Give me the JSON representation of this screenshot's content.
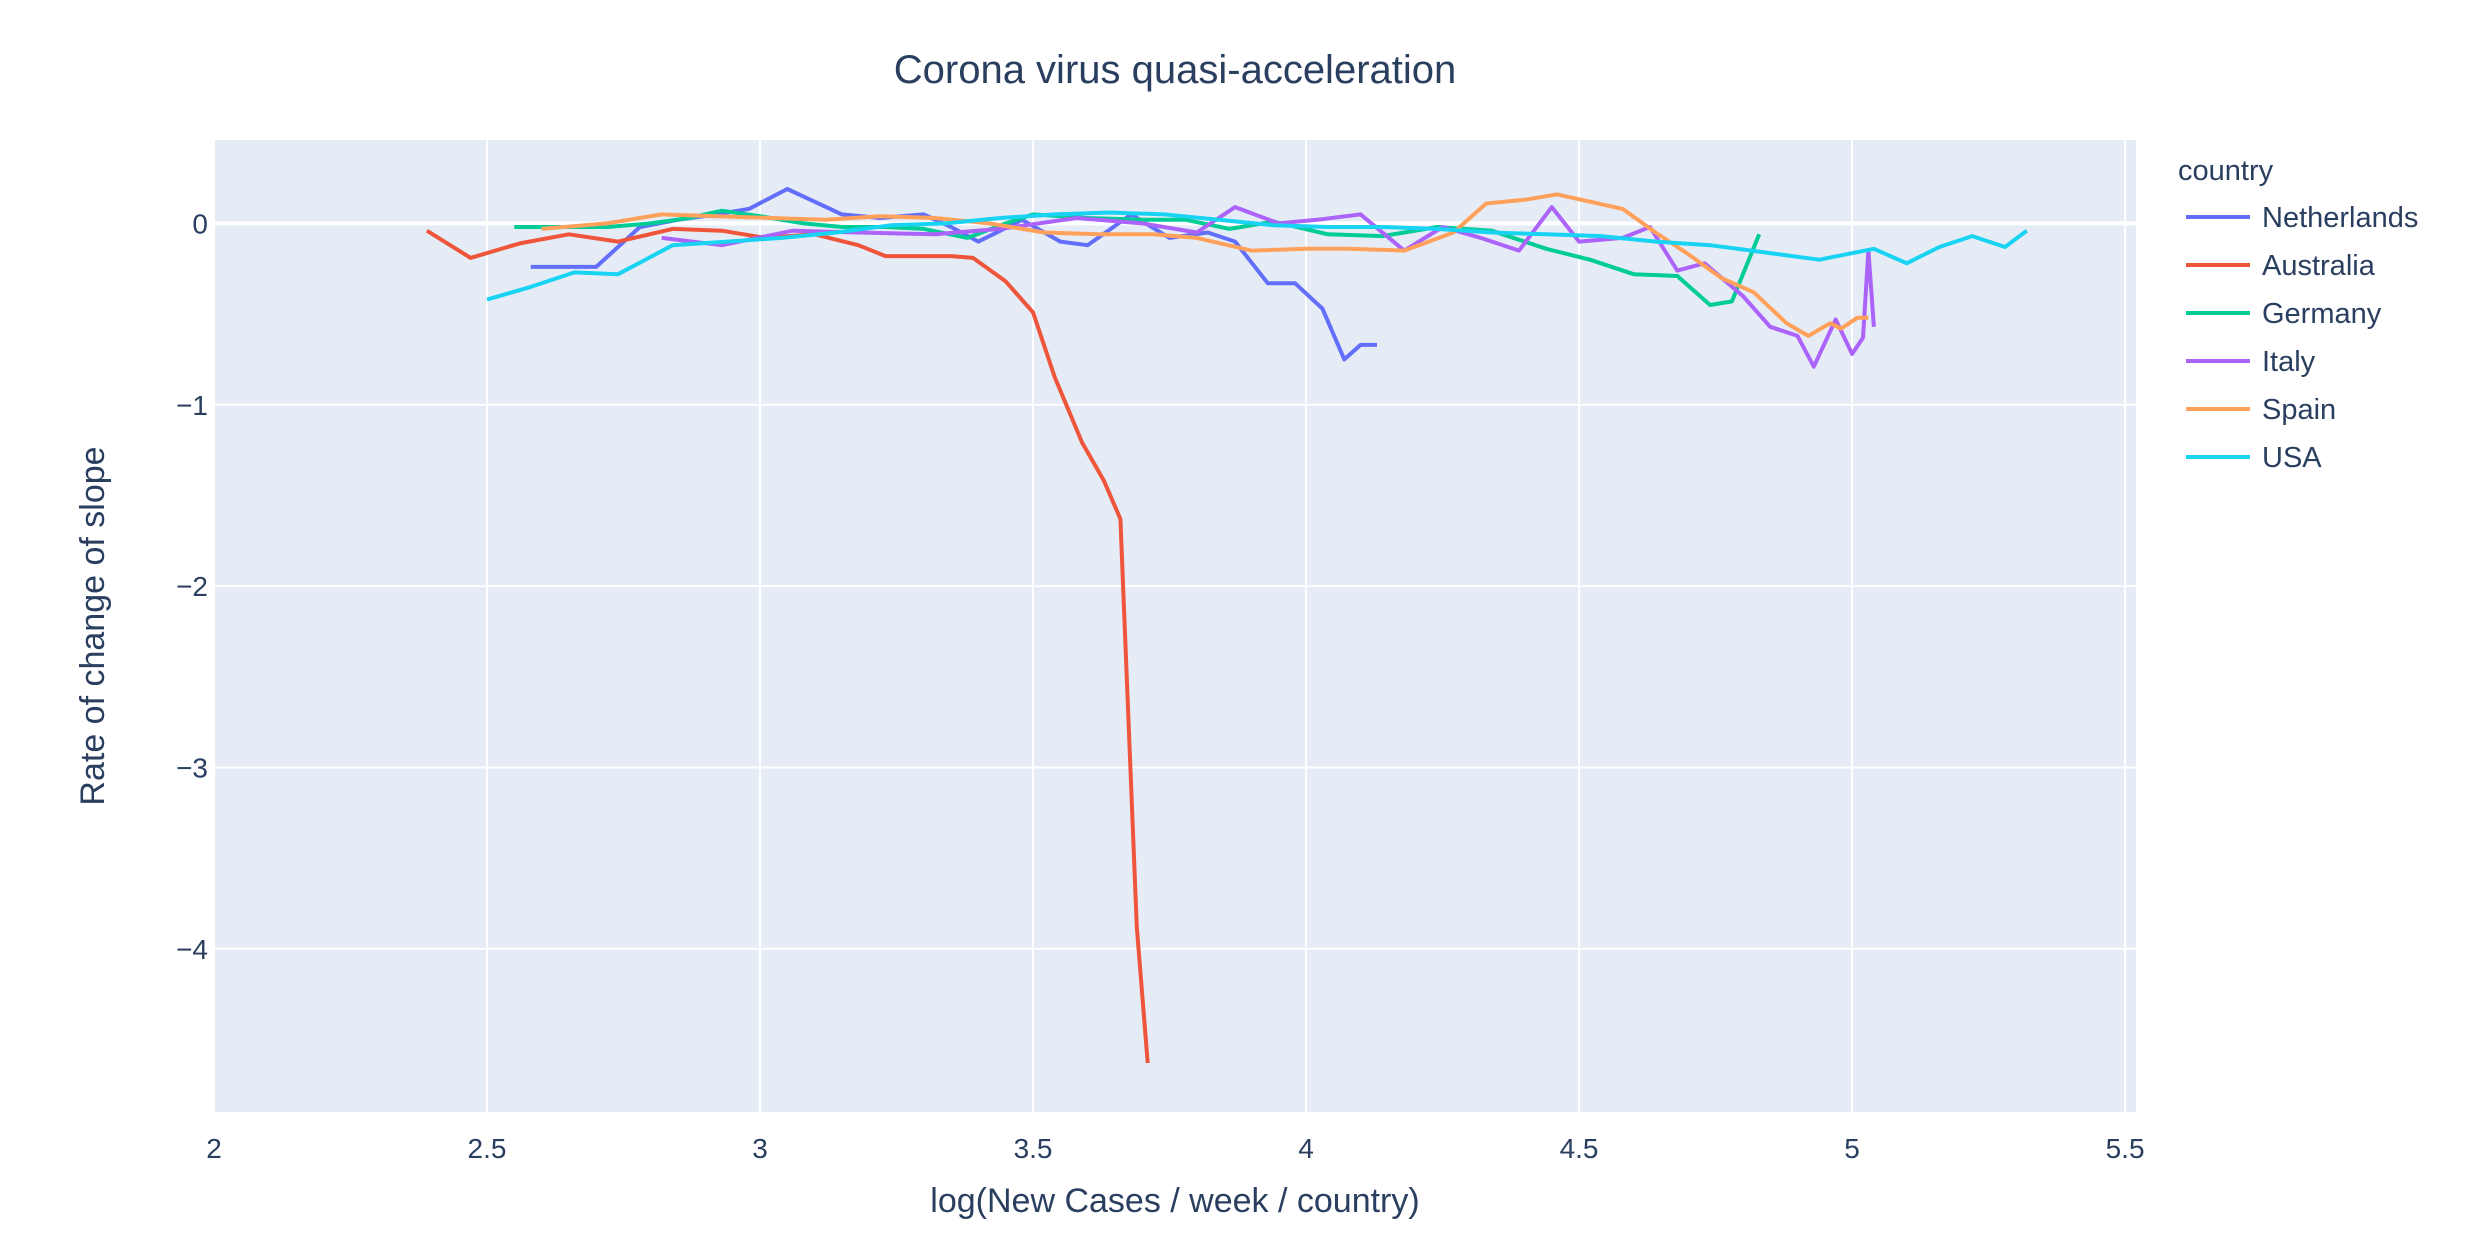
{
  "chart_data": {
    "type": "line",
    "title": "Corona virus quasi-acceleration",
    "xlabel": "log(New Cases / week / country)",
    "ylabel": "Rate of change of slope",
    "xlim": [
      2,
      5.52
    ],
    "ylim": [
      -4.9,
      0.46
    ],
    "xticks": [
      2,
      2.5,
      3,
      3.5,
      4,
      4.5,
      5,
      5.5
    ],
    "xtick_labels": [
      "2",
      "2.5",
      "3",
      "3.5",
      "4",
      "4.5",
      "5",
      "5.5"
    ],
    "yticks": [
      0,
      -1,
      -2,
      -3,
      -4
    ],
    "ytick_labels": [
      "0",
      "−1",
      "−2",
      "−3",
      "−4"
    ],
    "grid": true,
    "legend_title": "country",
    "legend_position": "right",
    "series": [
      {
        "name": "Netherlands",
        "color": "#636efa",
        "x": [
          2.58,
          2.65,
          2.7,
          2.78,
          2.85,
          2.92,
          2.98,
          3.05,
          3.1,
          3.15,
          3.22,
          3.3,
          3.35,
          3.4,
          3.48,
          3.55,
          3.6,
          3.68,
          3.75,
          3.82,
          3.87,
          3.93,
          3.98,
          4.03,
          4.07,
          4.1,
          4.13
        ],
        "y": [
          -0.24,
          -0.24,
          -0.24,
          -0.02,
          0.02,
          0.05,
          0.08,
          0.19,
          0.12,
          0.05,
          0.03,
          0.05,
          -0.02,
          -0.1,
          0.02,
          -0.1,
          -0.12,
          0.05,
          -0.08,
          -0.05,
          -0.1,
          -0.33,
          -0.33,
          -0.47,
          -0.75,
          -0.67,
          -0.67
        ]
      },
      {
        "name": "Australia",
        "color": "#ef553b",
        "x": [
          2.39,
          2.47,
          2.56,
          2.65,
          2.74,
          2.84,
          2.93,
          3.01,
          3.1,
          3.18,
          3.23,
          3.3,
          3.35,
          3.39,
          3.45,
          3.5,
          3.54,
          3.59,
          3.63,
          3.66,
          3.69,
          3.71
        ],
        "y": [
          -0.04,
          -0.19,
          -0.11,
          -0.06,
          -0.1,
          -0.03,
          -0.04,
          -0.08,
          -0.06,
          -0.12,
          -0.18,
          -0.18,
          -0.18,
          -0.19,
          -0.32,
          -0.49,
          -0.85,
          -1.21,
          -1.42,
          -1.63,
          -3.88,
          -4.63
        ]
      },
      {
        "name": "Germany",
        "color": "#00cc96",
        "x": [
          2.55,
          2.63,
          2.72,
          2.8,
          2.87,
          2.93,
          3.0,
          3.08,
          3.15,
          3.23,
          3.3,
          3.38,
          3.45,
          3.5,
          3.6,
          3.7,
          3.78,
          3.86,
          3.94,
          4.04,
          4.14,
          4.24,
          4.34,
          4.44,
          4.52,
          4.6,
          4.68,
          4.74,
          4.78,
          4.83
        ],
        "y": [
          -0.02,
          -0.02,
          -0.02,
          0.0,
          0.03,
          0.07,
          0.04,
          0.0,
          -0.02,
          -0.02,
          -0.03,
          -0.08,
          0.0,
          0.05,
          0.03,
          0.02,
          0.02,
          -0.03,
          0.01,
          -0.06,
          -0.07,
          -0.02,
          -0.04,
          -0.14,
          -0.2,
          -0.28,
          -0.29,
          -0.45,
          -0.43,
          -0.06
        ]
      },
      {
        "name": "Italy",
        "color": "#ab63fa",
        "x": [
          2.82,
          2.93,
          3.06,
          3.18,
          3.32,
          3.44,
          3.58,
          3.7,
          3.8,
          3.87,
          3.95,
          4.02,
          4.1,
          4.18,
          4.25,
          4.32,
          4.39,
          4.45,
          4.5,
          4.58,
          4.63,
          4.68,
          4.73,
          4.8,
          4.85,
          4.9,
          4.93,
          4.97,
          5.0,
          5.02,
          5.03,
          5.04
        ],
        "y": [
          -0.08,
          -0.12,
          -0.04,
          -0.05,
          -0.06,
          -0.03,
          0.03,
          0.0,
          -0.05,
          0.09,
          0.0,
          0.02,
          0.05,
          -0.15,
          -0.02,
          -0.08,
          -0.15,
          0.09,
          -0.1,
          -0.08,
          -0.02,
          -0.26,
          -0.22,
          -0.4,
          -0.57,
          -0.62,
          -0.79,
          -0.53,
          -0.72,
          -0.63,
          -0.15,
          -0.57
        ]
      },
      {
        "name": "Spain",
        "color": "#ffa15a",
        "x": [
          2.6,
          2.72,
          2.82,
          2.92,
          3.02,
          3.12,
          3.22,
          3.32,
          3.42,
          3.52,
          3.62,
          3.72,
          3.8,
          3.9,
          4.0,
          4.08,
          4.18,
          4.27,
          4.33,
          4.4,
          4.46,
          4.52,
          4.58,
          4.64,
          4.7,
          4.76,
          4.82,
          4.88,
          4.92,
          4.96,
          4.98,
          5.01,
          5.03
        ],
        "y": [
          -0.03,
          0.0,
          0.05,
          0.04,
          0.03,
          0.02,
          0.04,
          0.03,
          0.0,
          -0.05,
          -0.06,
          -0.06,
          -0.08,
          -0.15,
          -0.14,
          -0.14,
          -0.15,
          -0.05,
          0.11,
          0.13,
          0.16,
          0.12,
          0.08,
          -0.05,
          -0.17,
          -0.3,
          -0.38,
          -0.55,
          -0.62,
          -0.55,
          -0.58,
          -0.52,
          -0.52
        ]
      },
      {
        "name": "USA",
        "color": "#19d3f3",
        "x": [
          2.5,
          2.58,
          2.66,
          2.74,
          2.84,
          2.94,
          3.04,
          3.14,
          3.24,
          3.34,
          3.44,
          3.54,
          3.64,
          3.74,
          3.84,
          3.94,
          4.04,
          4.14,
          4.24,
          4.34,
          4.44,
          4.54,
          4.64,
          4.74,
          4.84,
          4.94,
          5.04,
          5.1,
          5.16,
          5.22,
          5.28,
          5.32
        ],
        "y": [
          -0.42,
          -0.35,
          -0.27,
          -0.28,
          -0.12,
          -0.1,
          -0.08,
          -0.05,
          -0.01,
          0.0,
          0.03,
          0.05,
          0.06,
          0.05,
          0.02,
          -0.01,
          -0.02,
          -0.02,
          -0.03,
          -0.05,
          -0.06,
          -0.07,
          -0.1,
          -0.12,
          -0.16,
          -0.2,
          -0.14,
          -0.22,
          -0.13,
          -0.07,
          -0.13,
          -0.04
        ]
      }
    ]
  }
}
